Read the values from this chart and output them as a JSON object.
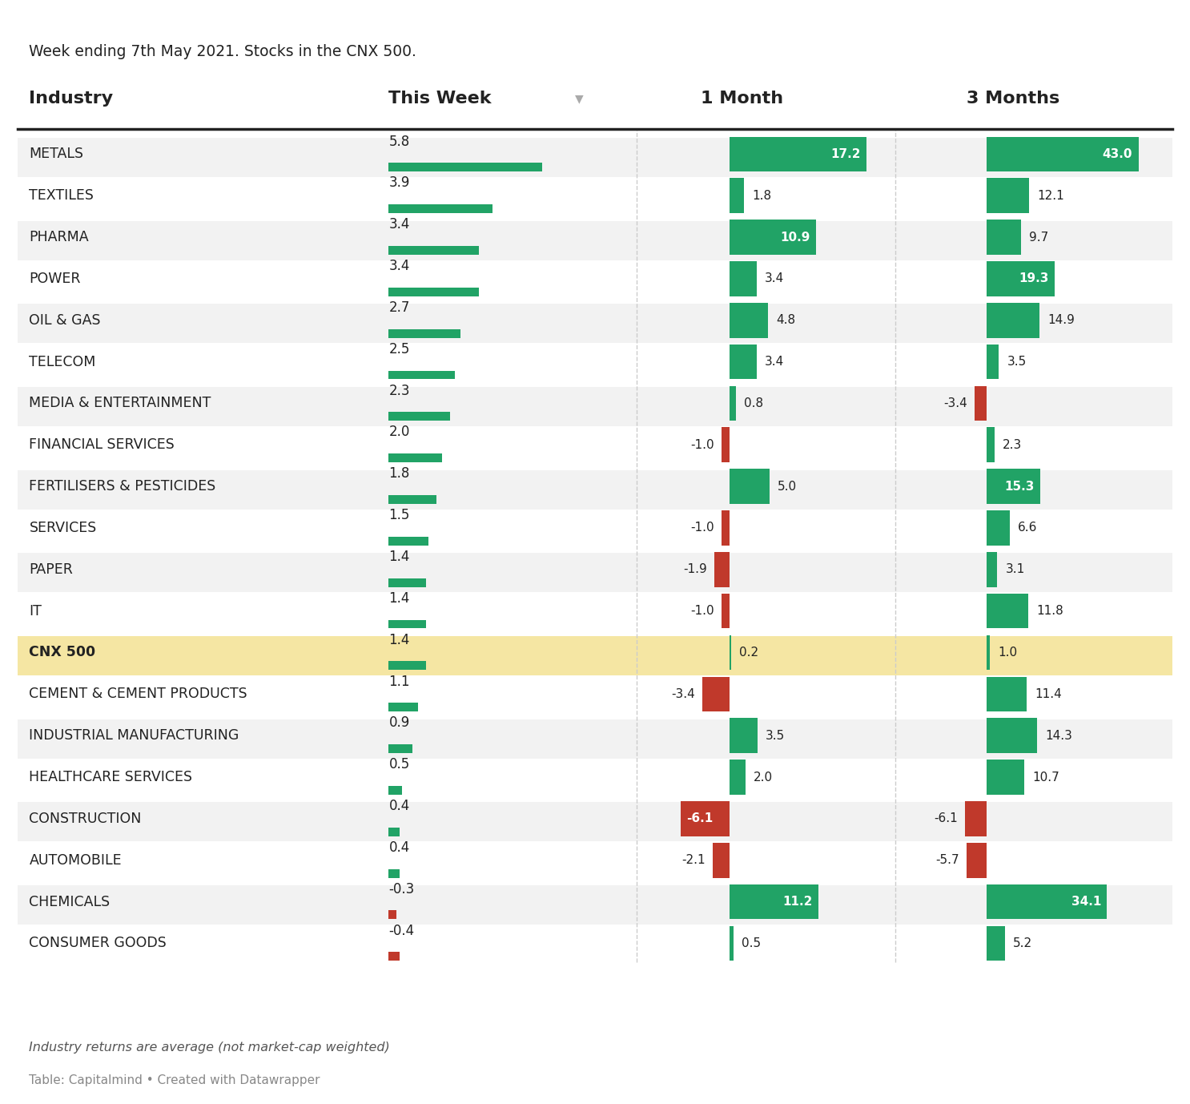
{
  "subtitle": "Week ending 7th May 2021. Stocks in the CNX 500.",
  "footnote1": "Industry returns are average (not market-cap weighted)",
  "footnote2": "Table: Capitalmind • Created with Datawrapper",
  "col_headers": [
    "Industry",
    "This Week",
    "1 Month",
    "3 Months"
  ],
  "industries": [
    "METALS",
    "TEXTILES",
    "PHARMA",
    "POWER",
    "OIL & GAS",
    "TELECOM",
    "MEDIA & ENTERTAINMENT",
    "FINANCIAL SERVICES",
    "FERTILISERS & PESTICIDES",
    "SERVICES",
    "PAPER",
    "IT",
    "CNX 500",
    "CEMENT & CEMENT PRODUCTS",
    "INDUSTRIAL MANUFACTURING",
    "HEALTHCARE SERVICES",
    "CONSTRUCTION",
    "AUTOMOBILE",
    "CHEMICALS",
    "CONSUMER GOODS"
  ],
  "this_week": [
    5.8,
    3.9,
    3.4,
    3.4,
    2.7,
    2.5,
    2.3,
    2.0,
    1.8,
    1.5,
    1.4,
    1.4,
    1.4,
    1.1,
    0.9,
    0.5,
    0.4,
    0.4,
    -0.3,
    -0.4
  ],
  "one_month": [
    17.2,
    1.8,
    10.9,
    3.4,
    4.8,
    3.4,
    0.8,
    -1.0,
    5.0,
    -1.0,
    -1.9,
    -1.0,
    0.2,
    -3.4,
    3.5,
    2.0,
    -6.1,
    -2.1,
    11.2,
    0.5
  ],
  "three_months": [
    43.0,
    12.1,
    9.7,
    19.3,
    14.9,
    3.5,
    -3.4,
    2.3,
    15.3,
    6.6,
    3.1,
    11.8,
    1.0,
    11.4,
    14.3,
    10.7,
    -6.1,
    -5.7,
    34.1,
    5.2
  ],
  "highlight_row": 12,
  "highlight_color": "#f5e6a3",
  "green_color": "#21a366",
  "red_color": "#c0392b",
  "bg_color": "#ffffff",
  "header_line_color": "#222222",
  "text_color": "#222222"
}
